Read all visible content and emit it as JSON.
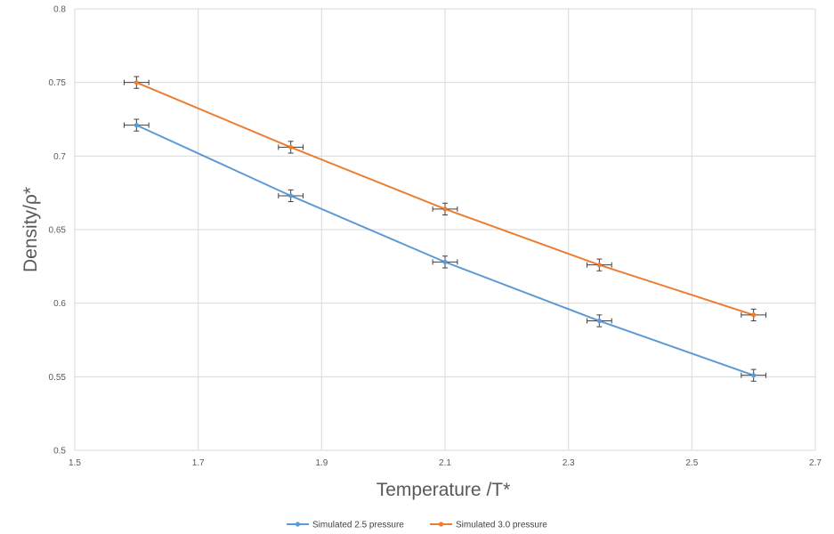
{
  "chart_data": {
    "type": "scatter",
    "xlabel": "Temperature /T*",
    "ylabel": "Density/ρ*",
    "xlim": [
      1.5,
      2.7
    ],
    "ylim": [
      0.5,
      0.8
    ],
    "x_ticks": [
      "1.5",
      "1.7",
      "1.9",
      "2.1",
      "2.3",
      "2.5",
      "2.7"
    ],
    "y_ticks": [
      "0.5",
      "0.55",
      "0.6",
      "0.65",
      "0.7",
      "0.75",
      "0.8"
    ],
    "x_tick_values": [
      1.5,
      1.7,
      1.9,
      2.1,
      2.3,
      2.5,
      2.7
    ],
    "y_tick_values": [
      0.5,
      0.55,
      0.6,
      0.65,
      0.7,
      0.75,
      0.8
    ],
    "grid": true,
    "legend_position": "bottom",
    "x_error": 0.02,
    "y_error": 0.004,
    "series": [
      {
        "name": "Simulated 2.5 pressure",
        "color": "#5b9bd5",
        "x": [
          1.6,
          1.85,
          2.1,
          2.35,
          2.6
        ],
        "y": [
          0.721,
          0.673,
          0.628,
          0.588,
          0.551
        ]
      },
      {
        "name": "Simulated 3.0 pressure",
        "color": "#ed7d31",
        "x": [
          1.6,
          1.85,
          2.1,
          2.35,
          2.6
        ],
        "y": [
          0.75,
          0.706,
          0.664,
          0.626,
          0.592
        ]
      }
    ]
  }
}
